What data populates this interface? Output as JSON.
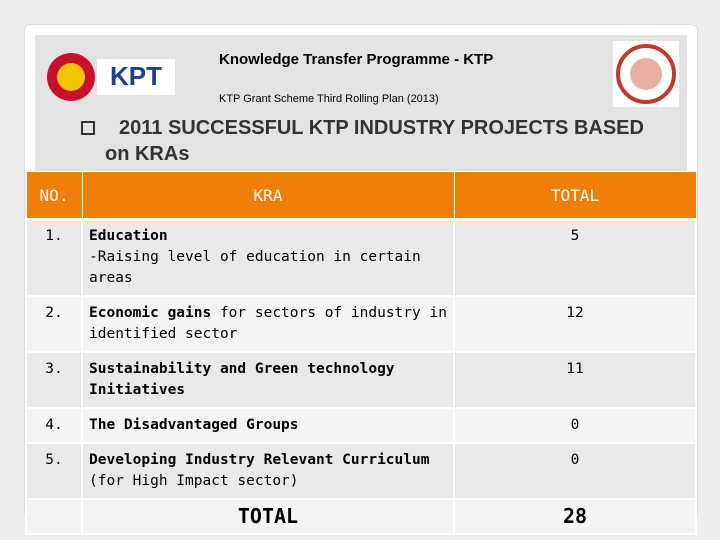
{
  "header": {
    "logo_left_text": "KPT",
    "title": "Knowledge Transfer Programme - KTP",
    "subtitle": "KTP Grant Scheme Third Rolling Plan (2013)",
    "heading": "2011 SUCCESSFUL KTP INDUSTRY PROJECTS BASED on KRAs"
  },
  "table": {
    "columns": [
      "NO.",
      "KRA",
      "TOTAL"
    ],
    "rows": [
      {
        "no": "1.",
        "kra": [
          {
            "text": "Education",
            "bold": true
          },
          {
            "text": "-Raising level of education in certain areas",
            "bold": false,
            "newline": true
          }
        ],
        "total": 5
      },
      {
        "no": "2.",
        "kra": [
          {
            "text": "Economic gains",
            "bold": true
          },
          {
            "text": " for sectors of industry in identified sector",
            "bold": false
          }
        ],
        "total": 12
      },
      {
        "no": "3.",
        "kra": [
          {
            "text": "Sustainability and Green technology Initiatives",
            "bold": true
          }
        ],
        "total": 11
      },
      {
        "no": "4.",
        "kra": [
          {
            "text": "The Disadvantaged Groups",
            "bold": true
          }
        ],
        "total": 0
      },
      {
        "no": "5.",
        "kra": [
          {
            "text": "Developing Industry Relevant Curriculum",
            "bold": true
          },
          {
            "text": " (for High Impact sector)",
            "bold": false
          }
        ],
        "total": 0
      }
    ],
    "footer": {
      "label": "TOTAL",
      "total": 28
    }
  }
}
